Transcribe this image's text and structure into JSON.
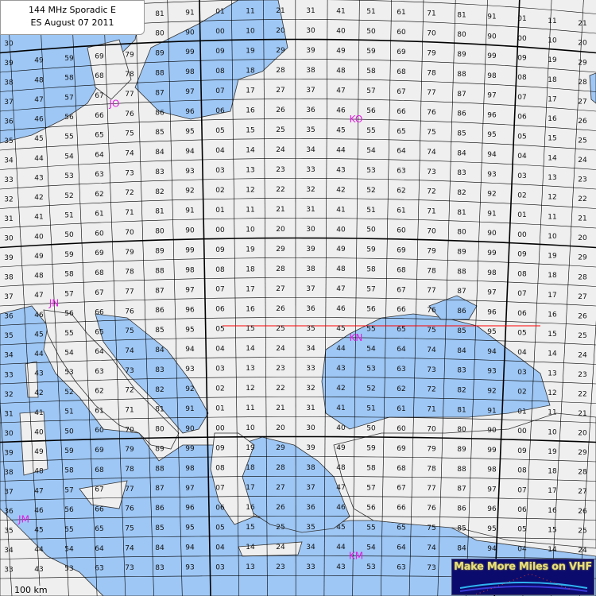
{
  "title": {
    "line1": "144 MHz Sporadic E",
    "line2": "ES  August 07 2011"
  },
  "logo": {
    "text": "Make More Miles on VHF"
  },
  "scale_label": "100 km",
  "colors": {
    "land": "#efefef",
    "sea": "#9ec7f5",
    "grid": "#000000",
    "border": "#333333",
    "locator": "#e020e0",
    "path": "#ff0000",
    "logo_bg": "#0b0b6e"
  },
  "field_labels": [
    {
      "id": "JO",
      "text": "JO"
    },
    {
      "id": "KO",
      "text": "KO"
    },
    {
      "id": "JN",
      "text": "JN"
    },
    {
      "id": "KN",
      "text": "KN"
    },
    {
      "id": "JM",
      "text": "JM"
    },
    {
      "id": "KM",
      "text": "KM"
    }
  ],
  "grid": {
    "column_digits": [
      "3",
      "4",
      "5",
      "6",
      "7",
      "8",
      "9",
      "0",
      "1",
      "2",
      "3",
      "4",
      "5",
      "6",
      "7",
      "8",
      "9",
      "0",
      "1",
      "2"
    ],
    "row_digits": [
      "1",
      "0",
      "9",
      "8",
      "7",
      "6",
      "5",
      "4",
      "3",
      "2",
      "1",
      "0",
      "9",
      "8",
      "7",
      "6",
      "5",
      "4",
      "3",
      "2",
      "1",
      "0",
      "9",
      "8",
      "7",
      "6",
      "5",
      "4",
      "3"
    ]
  },
  "es_path": {
    "description_visible": false
  }
}
